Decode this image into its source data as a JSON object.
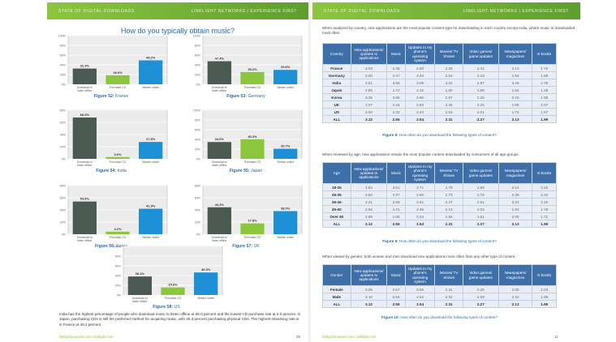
{
  "left_page": {
    "header": {
      "left": "STATE OF DIGITAL DOWNLOADS",
      "right": "LINKLIGHT NETWORKS | EXPERIENCE FIRST"
    },
    "title": "How do you typically obtain music?",
    "paragraph": "India has the highest percentage of people who download music to listen offline at 68.0 percent and the lowest CD purchase rate at 3.0 percent. In Japan, purchasing CDs is still the preferred method for acquiring music, with 40.3 percent purchasing physical CDs. The highest streaming rate is in France at 49.2 percent.",
    "footer": "linklightnetworks.com  |  linklight.com",
    "page_number": "25"
  },
  "chart_data": [
    {
      "type": "bar",
      "title": "Figure 52: France",
      "fig_label": "Figure 52:",
      "fig_name": "France",
      "categories": [
        "Download to listen offline",
        "Purchase CD",
        "Stream online"
      ],
      "values": [
        32.3,
        18.6,
        49.2
      ],
      "labels": [
        "32.3%",
        "18.6%",
        "49.2%"
      ],
      "ylim": [
        0,
        100
      ],
      "yticks": [
        "0%",
        "20%",
        "40%",
        "60%",
        "80%",
        "100%"
      ],
      "colors": [
        "#4a5a52",
        "#8cc63f",
        "#1e90d6"
      ]
    },
    {
      "type": "bar",
      "title": "Figure 53: Germany",
      "fig_label": "Figure 53:",
      "fig_name": "Germany",
      "categories": [
        "Download to listen offline",
        "Purchase CD",
        "Stream online"
      ],
      "values": [
        47.4,
        25.2,
        29.6
      ],
      "labels": [
        "47.4%",
        "25.2%",
        "29.6%"
      ],
      "ylim": [
        0,
        100
      ],
      "yticks": [
        "0%",
        "20%",
        "40%",
        "60%",
        "80%",
        "100%"
      ],
      "colors": [
        "#4a5a52",
        "#8cc63f",
        "#1e90d6"
      ]
    },
    {
      "type": "bar",
      "title": "Figure 54: India",
      "fig_label": "Figure 54:",
      "fig_name": "India",
      "categories": [
        "Download to listen offline",
        "Purchase CD",
        "Stream online"
      ],
      "values": [
        68.0,
        3.0,
        27.8
      ],
      "labels": [
        "68.0%",
        "3.0%",
        "27.8%"
      ],
      "ylim": [
        0,
        80
      ],
      "yticks": [
        "0%",
        "20%",
        "40%",
        "60%",
        "80%"
      ],
      "colors": [
        "#4a5a52",
        "#8cc63f",
        "#1e90d6"
      ]
    },
    {
      "type": "bar",
      "title": "Figure 55: Japan",
      "fig_label": "Figure 55:",
      "fig_name": "Japan",
      "categories": [
        "Download to listen offline",
        "Purchase CD",
        "Stream online"
      ],
      "values": [
        34.6,
        40.3,
        20.7
      ],
      "labels": [
        "34.6%",
        "40.3%",
        "20.7%"
      ],
      "ylim": [
        0,
        100
      ],
      "yticks": [
        "0%",
        "20%",
        "40%",
        "60%",
        "80%",
        "100%"
      ],
      "colors": [
        "#4a5a52",
        "#8cc63f",
        "#1e90d6"
      ]
    },
    {
      "type": "bar",
      "title": "Figure 56: Korea",
      "fig_label": "Figure 56:",
      "fig_name": "Korea",
      "categories": [
        "Download to listen offline",
        "Purchase CD",
        "Stream online"
      ],
      "values": [
        53.8,
        4.2,
        41.9
      ],
      "labels": [
        "53.8%",
        "4.2%",
        "41.9%"
      ],
      "ylim": [
        0,
        80
      ],
      "yticks": [
        "0%",
        "20%",
        "40%",
        "60%",
        "80%"
      ],
      "colors": [
        "#4a5a52",
        "#8cc63f",
        "#1e90d6"
      ]
    },
    {
      "type": "bar",
      "title": "Figure 57: UK",
      "fig_label": "Figure 57:",
      "fig_name": "UK",
      "categories": [
        "Download to listen offline",
        "Purchase CD",
        "Stream online"
      ],
      "values": [
        44.3,
        17.8,
        38.0
      ],
      "labels": [
        "44.3%",
        "17.8%",
        "38.0%"
      ],
      "ylim": [
        0,
        80
      ],
      "yticks": [
        "0%",
        "20%",
        "40%",
        "60%",
        "80%"
      ],
      "colors": [
        "#4a5a52",
        "#8cc63f",
        "#1e90d6"
      ]
    },
    {
      "type": "bar",
      "title": "Figure 58: US",
      "fig_label": "Figure 58:",
      "fig_name": "US",
      "categories": [
        "Download to listen offline",
        "Purchase CD",
        "Stream online"
      ],
      "values": [
        38.1,
        15.6,
        46.3
      ],
      "labels": [
        "38.1%",
        "15.6%",
        "46.3%"
      ],
      "ylim": [
        0,
        100
      ],
      "yticks": [
        "0%",
        "20%",
        "40%",
        "60%",
        "80%",
        "100%"
      ],
      "colors": [
        "#4a5a52",
        "#8cc63f",
        "#1e90d6"
      ]
    }
  ],
  "right_page": {
    "header": {
      "left": "STATE OF DIGITAL DOWNLOADS",
      "right": "LINKLIGHT NETWORKS | EXPERIENCE FIRST"
    },
    "columns": [
      "New applications/ updates to applications",
      "Music",
      "Updates to my phone's operating system",
      "Movies/ TV Shows",
      "Video games/ game updates",
      "Newspapers/ magazines",
      "E-books"
    ],
    "country_table": {
      "intro": "When analyzed by country, new applications are the most popular content type for downloading in each country except India, where music is downloaded most often.",
      "first_header": "Country",
      "rows": [
        {
          "label": "France",
          "values": [
            "3.03",
            "2.48",
            "2.60",
            "2.26",
            "2.41",
            "2.13",
            "1.76"
          ]
        },
        {
          "label": "Germany",
          "values": [
            "3.00",
            "2.37",
            "2.34",
            "2.04",
            "2.19",
            "1.94",
            "1.88"
          ]
        },
        {
          "label": "India",
          "values": [
            "3.51",
            "3.68",
            "3.08",
            "3.23",
            "2.87",
            "3.48",
            "2.79"
          ]
        },
        {
          "label": "Japan",
          "values": [
            "2.85",
            "1.72",
            "2.15",
            "1.60",
            "1.88",
            "1.54",
            "1.48"
          ]
        },
        {
          "label": "Korea",
          "values": [
            "3.35",
            "2.86",
            "2.90",
            "2.67",
            "2.25",
            "2.15",
            "1.95"
          ]
        },
        {
          "label": "UK",
          "values": [
            "3.07",
            "2.44",
            "2.60",
            "2.35",
            "2.25",
            "1.96",
            "2.07"
          ]
        },
        {
          "label": "US",
          "values": [
            "3.00",
            "2.32",
            "2.43",
            "2.04",
            "2.01",
            "1.72",
            "1.67"
          ]
        },
        {
          "label": "ALL",
          "values": [
            "3.12",
            "2.56",
            "2.54",
            "2.31",
            "2.27",
            "2.13",
            "1.99"
          ]
        }
      ],
      "caption_label": "Figure 8:",
      "caption_text": "How often do you download the following types of content?"
    },
    "age_table": {
      "intro": "When reviewed by age, new applications remain the most popular content downloaded by consumers of all age groups.",
      "first_header": "Age",
      "rows": [
        {
          "label": "18-25",
          "values": [
            "3.64",
            "3.61",
            "2.71",
            "2.79",
            "2.89",
            "2.14",
            "2.16"
          ]
        },
        {
          "label": "26-35",
          "values": [
            "3.50",
            "2.97",
            "2.80",
            "2.73",
            "2.76",
            "2.39",
            "2.32"
          ]
        },
        {
          "label": "36-45",
          "values": [
            "3.21",
            "2.58",
            "2.61",
            "2.47",
            "2.51",
            "2.21",
            "2.16"
          ]
        },
        {
          "label": "46-60",
          "values": [
            "2.92",
            "2.21",
            "2.46",
            "2.13",
            "2.03",
            "1.93",
            "1.78"
          ]
        },
        {
          "label": "Over 60",
          "values": [
            "2.65",
            "1.66",
            "2.24",
            "1.84",
            "1.61",
            "2.05",
            "1.71"
          ]
        },
        {
          "label": "ALL",
          "values": [
            "3.12",
            "2.56",
            "2.54",
            "2.31",
            "2.27",
            "2.13",
            "1.99"
          ]
        }
      ],
      "caption_label": "Figure 9:",
      "caption_text": "How often do you download the following types of content?"
    },
    "gender_table": {
      "intro": "When viewed by gender, both women and men download new applications more often than any other type of content.",
      "first_header": "Gender",
      "rows": [
        {
          "label": "Female",
          "values": [
            "3.06",
            "2.57",
            "2.56",
            "2.31",
            "2.25",
            "2.05",
            "2.03"
          ]
        },
        {
          "label": "Male",
          "values": [
            "3.16",
            "2.54",
            "2.52",
            "2.32",
            "2.28",
            "2.22",
            "1.95"
          ]
        },
        {
          "label": "ALL",
          "values": [
            "3.12",
            "2.56",
            "2.54",
            "2.31",
            "2.27",
            "2.13",
            "1.99"
          ]
        }
      ],
      "caption_label": "Figure 10:",
      "caption_text": "How often do you download the following types of content?"
    },
    "footer": "linklightnetworks.com  |  linklight.com",
    "page_number": "11"
  }
}
